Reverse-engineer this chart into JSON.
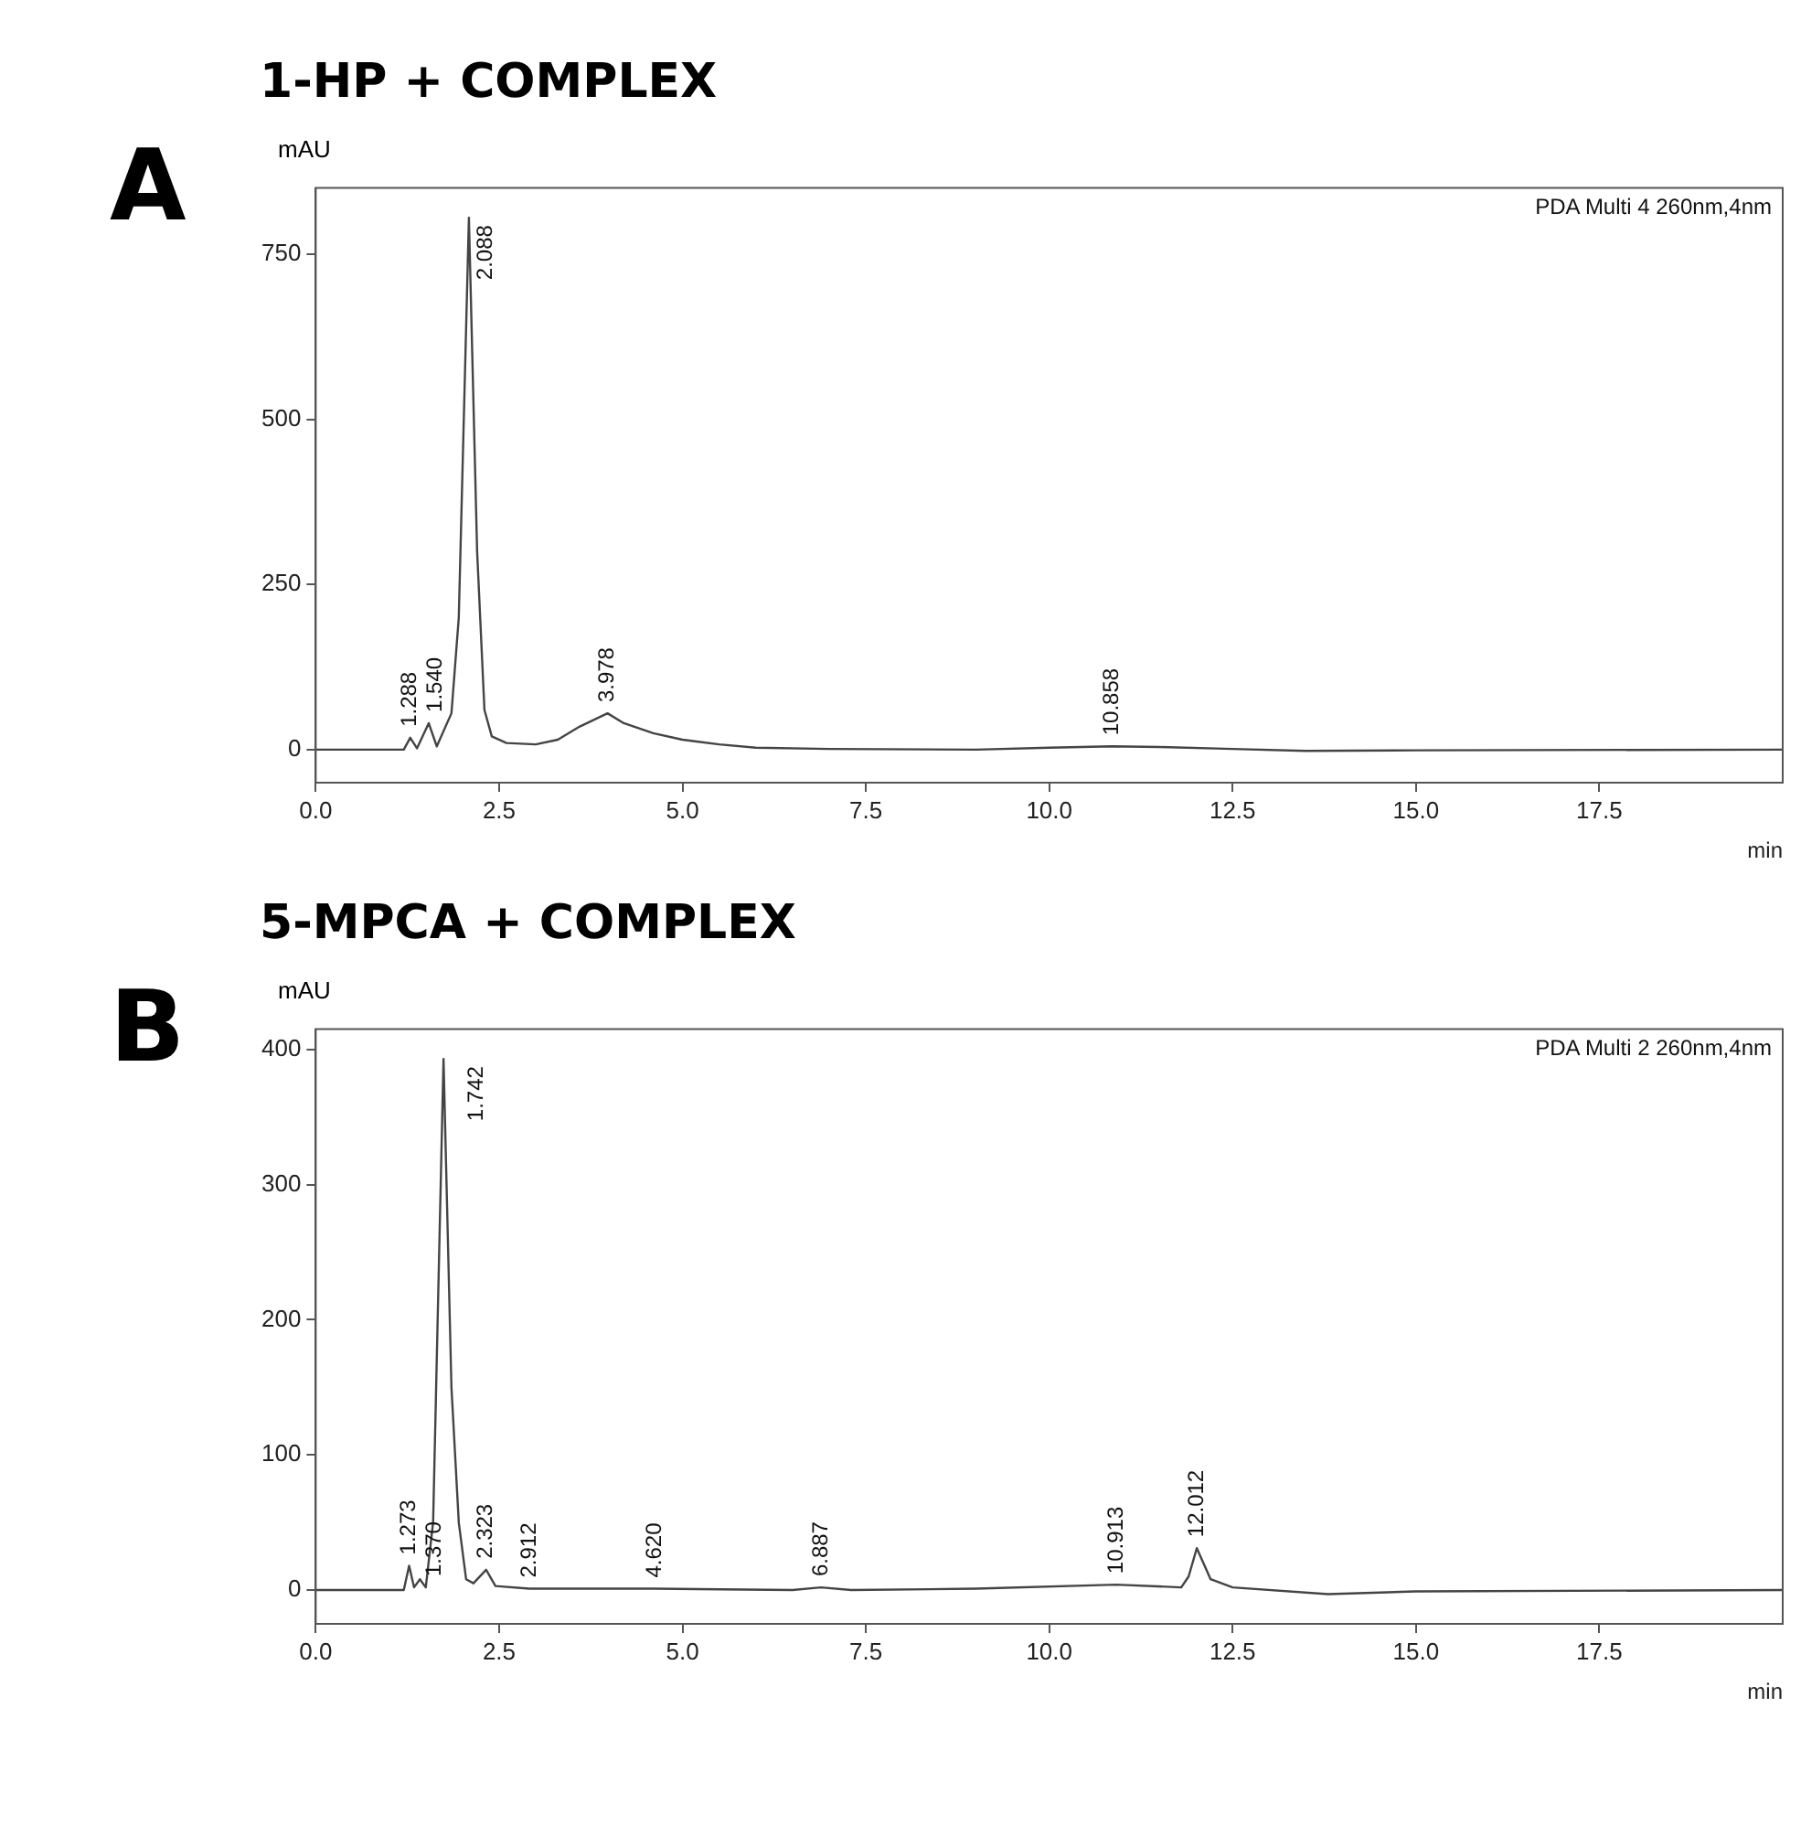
{
  "chart_data": [
    {
      "type": "line",
      "title": "1-HP + COMPLEX",
      "ylabel": "mAU",
      "xlabel": "min",
      "legend": false,
      "grid": false,
      "marker": "none",
      "line_style": "solid",
      "xlim": [
        0,
        20
      ],
      "xticks": [
        {
          "value": 0,
          "label": "0.0"
        },
        {
          "value": 2.5,
          "label": "2.5"
        },
        {
          "value": 5,
          "label": "5.0"
        },
        {
          "value": 7.5,
          "label": "7.5"
        },
        {
          "value": 10,
          "label": "10.0"
        },
        {
          "value": 12.5,
          "label": "12.5"
        },
        {
          "value": 15,
          "label": "15.0"
        },
        {
          "value": 17.5,
          "label": "17.5"
        }
      ],
      "ylim": [
        -50,
        850
      ],
      "yticks": [
        0,
        250,
        500,
        750
      ],
      "series": [
        {
          "color": "#444444",
          "x": [
            0,
            1.2,
            1.288,
            1.38,
            1.54,
            1.65,
            1.85,
            1.95,
            2.088,
            2.2,
            2.3,
            2.4,
            2.6,
            3.0,
            3.3,
            3.6,
            3.978,
            4.2,
            4.6,
            5.0,
            5.5,
            6.0,
            7.0,
            9.0,
            10.0,
            10.858,
            11.5,
            12.5,
            13.5,
            15.0,
            20.0
          ],
          "values": [
            0,
            0,
            18,
            2,
            40,
            5,
            55,
            200,
            805,
            300,
            60,
            20,
            10,
            8,
            15,
            35,
            55,
            40,
            25,
            15,
            8,
            3,
            1,
            0,
            3,
            5,
            4,
            1,
            -2,
            -1,
            0
          ]
        }
      ],
      "annotations": [
        "A",
        "PDA Multi 4 260nm,4nm",
        {
          "text": "1.288",
          "x": 1.288,
          "y": 18
        },
        {
          "text": "1.540",
          "x": 1.54,
          "y": 40
        },
        {
          "text": "2.088",
          "x": 2.088,
          "y": 805
        },
        {
          "text": "3.978",
          "x": 3.978,
          "y": 55
        },
        {
          "text": "10.858",
          "x": 10.858,
          "y": 5
        }
      ]
    },
    {
      "type": "line",
      "title": "5-MPCA + COMPLEX",
      "ylabel": "mAU",
      "xlabel": "min",
      "legend": false,
      "grid": false,
      "marker": "none",
      "line_style": "solid",
      "xlim": [
        0,
        20
      ],
      "xticks": [
        {
          "value": 0,
          "label": "0.0"
        },
        {
          "value": 2.5,
          "label": "2.5"
        },
        {
          "value": 5,
          "label": "5.0"
        },
        {
          "value": 7.5,
          "label": "7.5"
        },
        {
          "value": 10,
          "label": "10.0"
        },
        {
          "value": 12.5,
          "label": "12.5"
        },
        {
          "value": 15,
          "label": "15.0"
        },
        {
          "value": 17.5,
          "label": "17.5"
        }
      ],
      "ylim": [
        -25,
        415
      ],
      "yticks": [
        0,
        100,
        200,
        300,
        400
      ],
      "series": [
        {
          "color": "#444444",
          "x": [
            0,
            1.2,
            1.273,
            1.34,
            1.42,
            1.5,
            1.6,
            1.742,
            1.85,
            1.95,
            2.05,
            2.15,
            2.323,
            2.45,
            2.912,
            4.62,
            6.5,
            6.887,
            7.3,
            9.0,
            10.913,
            11.8,
            11.9,
            12.012,
            12.2,
            12.5,
            13.8,
            15.0,
            20.0
          ],
          "values": [
            0,
            0,
            18,
            2,
            8,
            2,
            50,
            393,
            150,
            50,
            8,
            5,
            15,
            3,
            1,
            1,
            0,
            2,
            0,
            1,
            4,
            2,
            10,
            31,
            8,
            2,
            -3,
            -1,
            0
          ]
        }
      ],
      "annotations": [
        "B",
        "PDA Multi 2 260nm,4nm",
        {
          "text": "1.273",
          "x": 1.273,
          "y": 18
        },
        {
          "text": "1.370",
          "x": 1.37,
          "y": 2
        },
        {
          "text": "1.742",
          "x": 1.742,
          "y": 393
        },
        {
          "text": "2.323",
          "x": 2.323,
          "y": 15
        },
        {
          "text": "2.912",
          "x": 2.912,
          "y": 1
        },
        {
          "text": "4.620",
          "x": 4.62,
          "y": 1
        },
        {
          "text": "6.887",
          "x": 6.887,
          "y": 2
        },
        {
          "text": "10.913",
          "x": 10.913,
          "y": 4
        },
        {
          "text": "12.012",
          "x": 12.012,
          "y": 31
        }
      ]
    }
  ]
}
